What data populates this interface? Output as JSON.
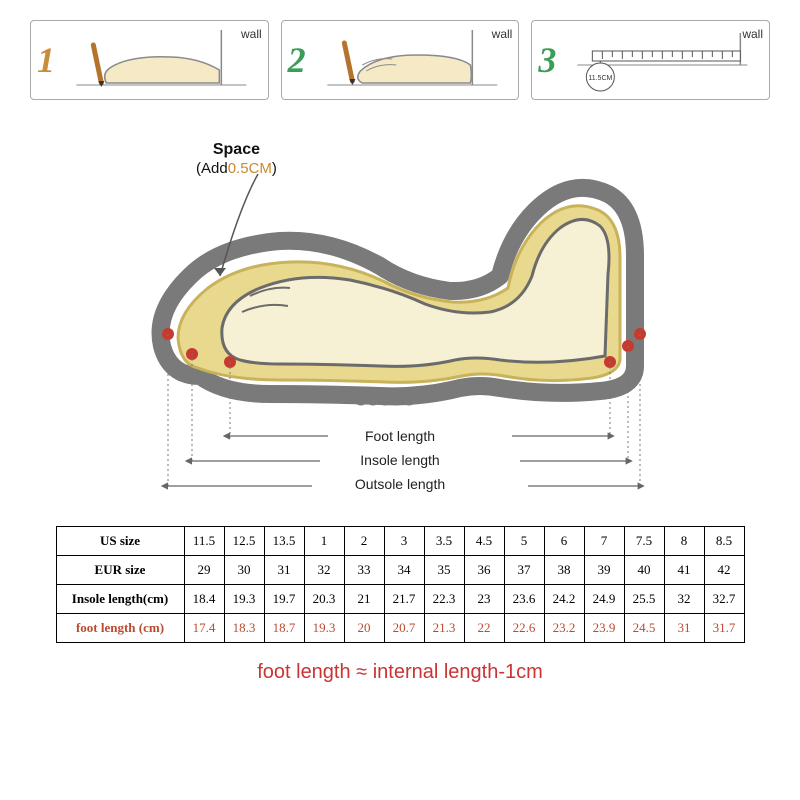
{
  "steps": {
    "wall_label": "wall",
    "items": [
      {
        "num": "1",
        "num_color": "#c98c3a"
      },
      {
        "num": "2",
        "num_color": "#3c9d5a"
      },
      {
        "num": "3",
        "num_color": "#3c9d5a",
        "measure": "11.5CM"
      }
    ]
  },
  "shoe": {
    "space_title": "Space",
    "space_add_prefix": "(Add",
    "space_add_value": "0.5CM",
    "space_add_suffix": ")",
    "space_value_color": "#cc8a2a",
    "dim_foot": "Foot length",
    "dim_insole": "Insole length",
    "dim_outsole": "Outsole length",
    "colors": {
      "skin": "#f6f0d4",
      "sole_light": "#e8d98f",
      "sole_outline": "#7a7a7a",
      "foot_outline": "#6b6b6b",
      "red_dot": "#c63b2f",
      "arrow": "#666666"
    }
  },
  "table": {
    "headers": {
      "us": "US size",
      "eur": "EUR size",
      "insole": "Insole length(cm)",
      "foot": "foot length (cm)"
    },
    "foot_header_color": "#bb4b30",
    "columns_count": 14,
    "rows": {
      "us": [
        "11.5",
        "12.5",
        "13.5",
        "1",
        "2",
        "3",
        "3.5",
        "4.5",
        "5",
        "6",
        "7",
        "7.5",
        "8",
        "8.5"
      ],
      "eur": [
        "29",
        "30",
        "31",
        "32",
        "33",
        "34",
        "35",
        "36",
        "37",
        "38",
        "39",
        "40",
        "41",
        "42"
      ],
      "insole": [
        "18.4",
        "19.3",
        "19.7",
        "20.3",
        "21",
        "21.7",
        "22.3",
        "23",
        "23.6",
        "24.2",
        "24.9",
        "25.5",
        "32",
        "32.7"
      ],
      "foot": [
        "17.4",
        "18.3",
        "18.7",
        "19.3",
        "20",
        "20.7",
        "21.3",
        "22",
        "22.6",
        "23.2",
        "23.9",
        "24.5",
        "31",
        "31.7"
      ]
    }
  },
  "formula": {
    "text": "foot length  ≈  internal length-1cm",
    "color": "#cc3333",
    "fontsize": 20
  }
}
